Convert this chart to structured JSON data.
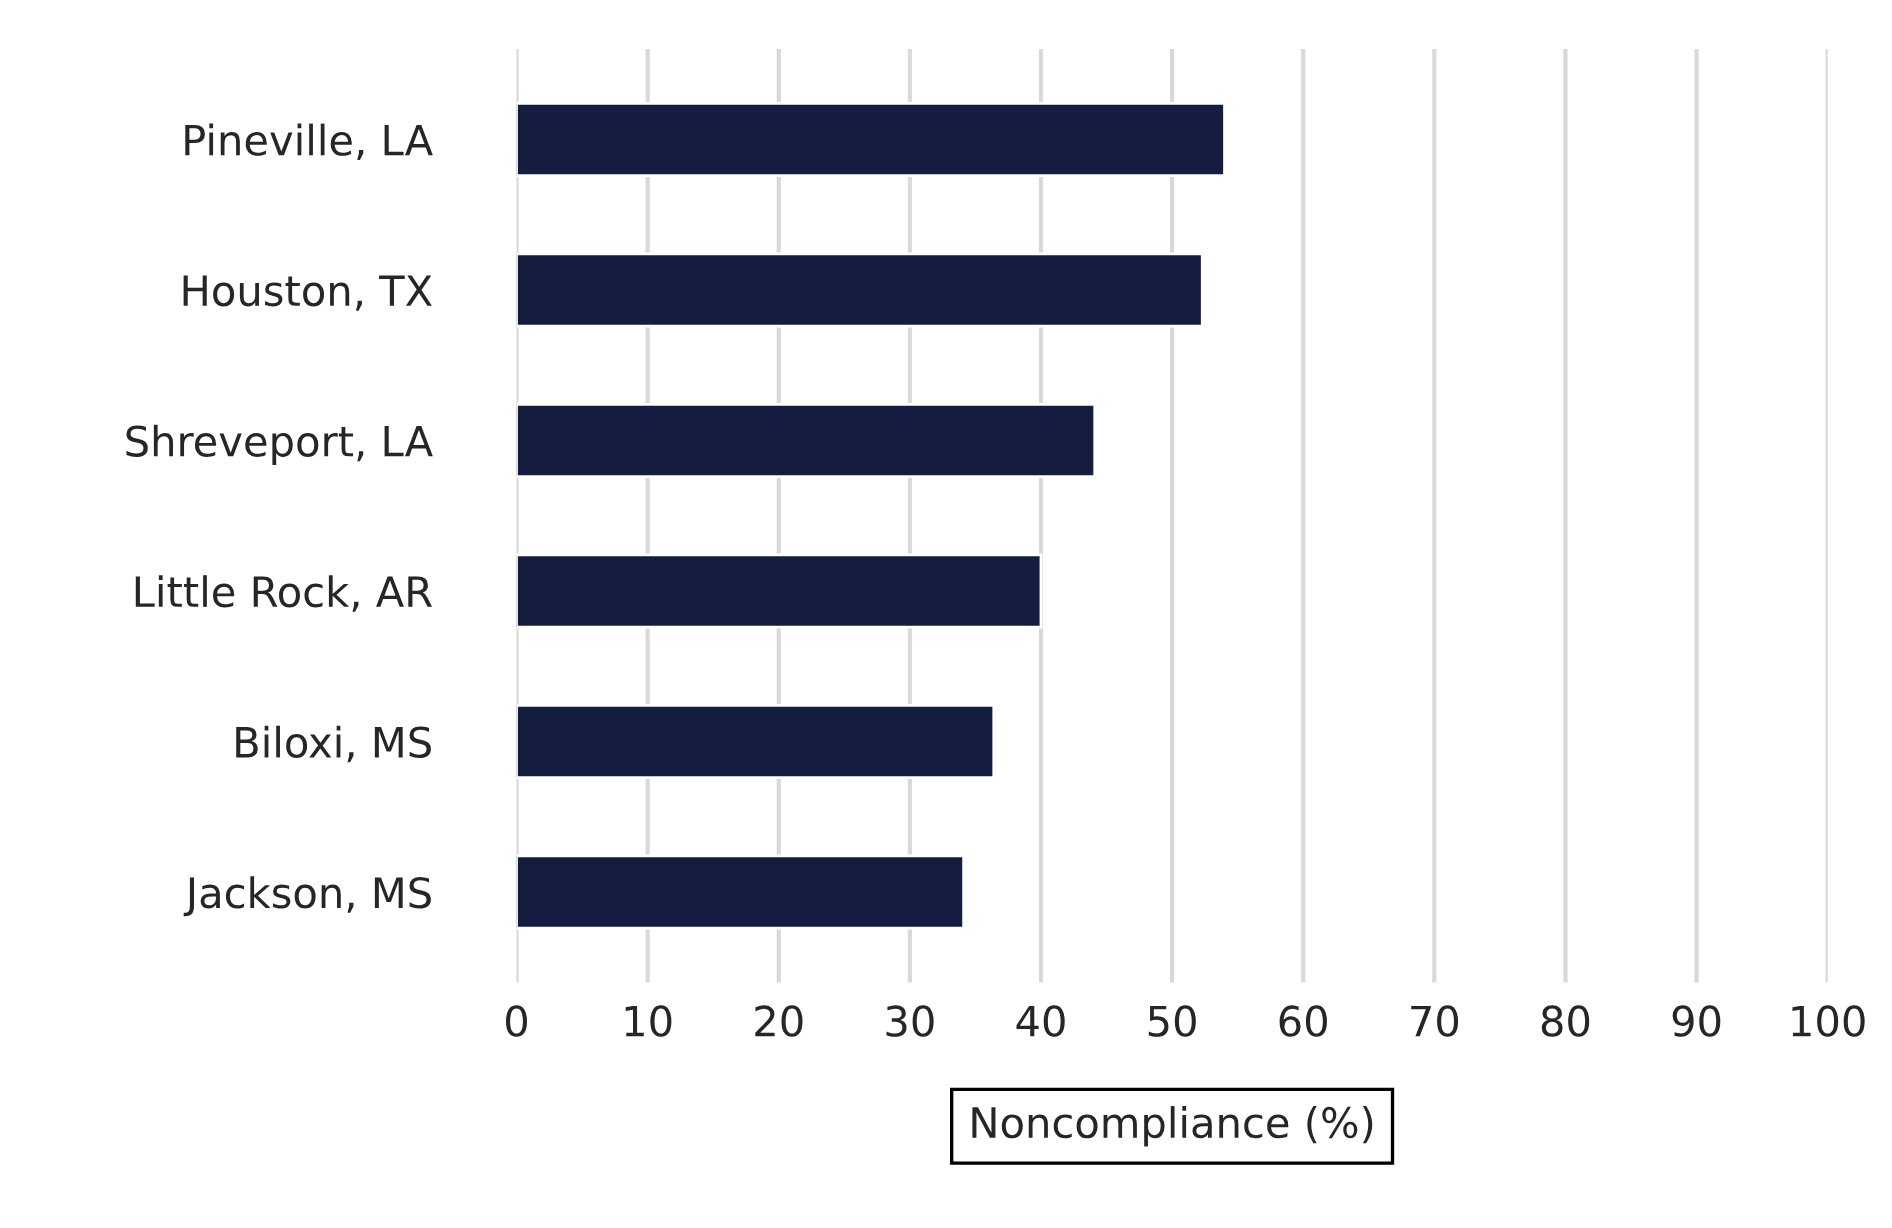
{
  "chart_data": {
    "type": "bar",
    "orientation": "horizontal",
    "xlabel": "Noncompliance (%)",
    "categories": [
      "Pineville, LA",
      "Houston, TX",
      "Shreveport, LA",
      "Little Rock, AR",
      "Biloxi, MS",
      "Jackson, MS"
    ],
    "values": [
      54,
      52.3,
      44.1,
      40,
      36.4,
      34.1
    ],
    "color": "#141d40",
    "xlim": [
      0,
      100
    ],
    "xticks": [
      0,
      10,
      20,
      30,
      40,
      50,
      60,
      70,
      80,
      90,
      100
    ],
    "grid": "x"
  }
}
